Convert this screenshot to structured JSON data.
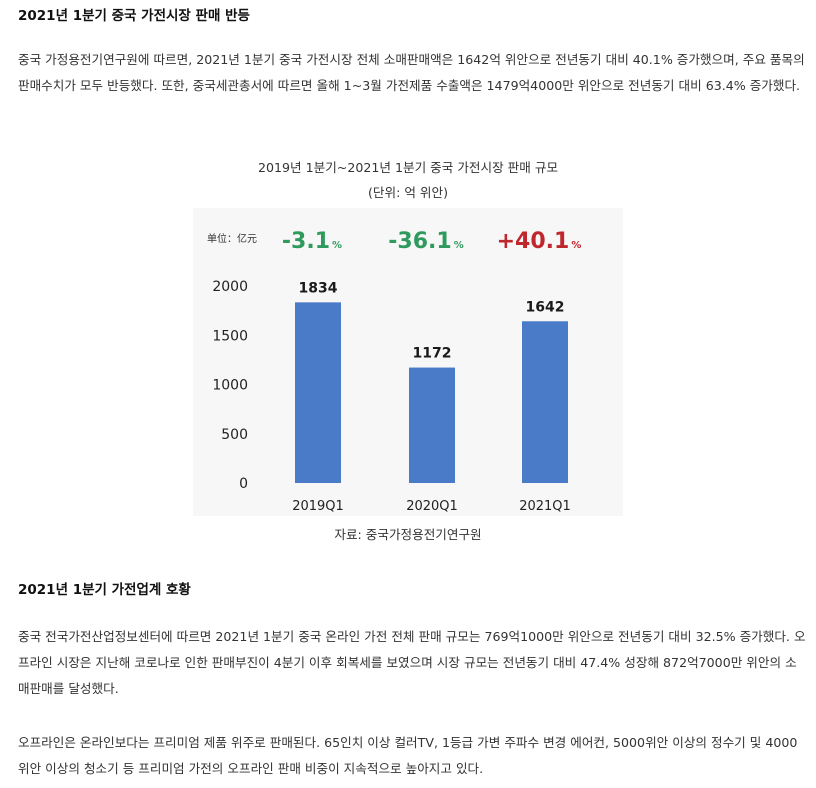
{
  "section1": {
    "heading": "2021년 1분기 중국 가전시장 판매 반등",
    "paragraph": "중국 가정용전기연구원에 따르면, 2021년 1분기 중국 가전시장 전체 소매판매액은 1642억 위안으로 전년동기 대비 40.1% 증가했으며, 주요 품목의 판매수치가 모두 반등했다. 또한, 중국세관총서에 따르면 올해 1~3월 가전제품 수출액은 1479억4000만 위안으로 전년동기 대비 63.4% 증가했다."
  },
  "figure": {
    "title": "2019년 1분기~2021년 1분기 중국 가전시장 판매 규모",
    "unit_note": "(단위: 억 위안)",
    "source": "자료: 중국가정용전기연구원"
  },
  "chart_data": {
    "type": "bar",
    "unit_label": "单位：亿元",
    "categories": [
      "2019Q1",
      "2020Q1",
      "2021Q1"
    ],
    "values": [
      1834,
      1172,
      1642
    ],
    "ylim": [
      0,
      2000
    ],
    "yticks": [
      0,
      500,
      1000,
      1500,
      2000
    ],
    "grid": false,
    "bar_color": "#4a7bc8",
    "growth_labels": [
      {
        "value": "-3.1",
        "suffix": "%",
        "color": "#2e9a5b"
      },
      {
        "value": "-36.1",
        "suffix": "%",
        "color": "#2e9a5b"
      },
      {
        "value": "+40.1",
        "suffix": "%",
        "color": "#c0272d"
      }
    ]
  },
  "section2": {
    "heading": "2021년 1분기 가전업계 호황",
    "paragraph1": "중국 전국가전산업정보센터에 따르면 2021년 1분기 중국 온라인 가전 전체 판매 규모는 769억1000만 위안으로 전년동기 대비 32.5% 증가했다. 오프라인 시장은 지난해 코로나로 인한 판매부진이 4분기 이후 회복세를 보였으며 시장 규모는 전년동기 대비 47.4% 성장해 872억7000만 위안의 소매판매를 달성했다.",
    "paragraph2": "오프라인은 온라인보다는 프리미엄 제품 위주로 판매된다. 65인치 이상 컬러TV, 1등급 가변 주파수 변경 에어컨, 5000위안 이상의 정수기 및 4000위안 이상의 청소기 등 프리미엄 가전의 오프라인 판매 비중이 지속적으로 높아지고 있다."
  }
}
